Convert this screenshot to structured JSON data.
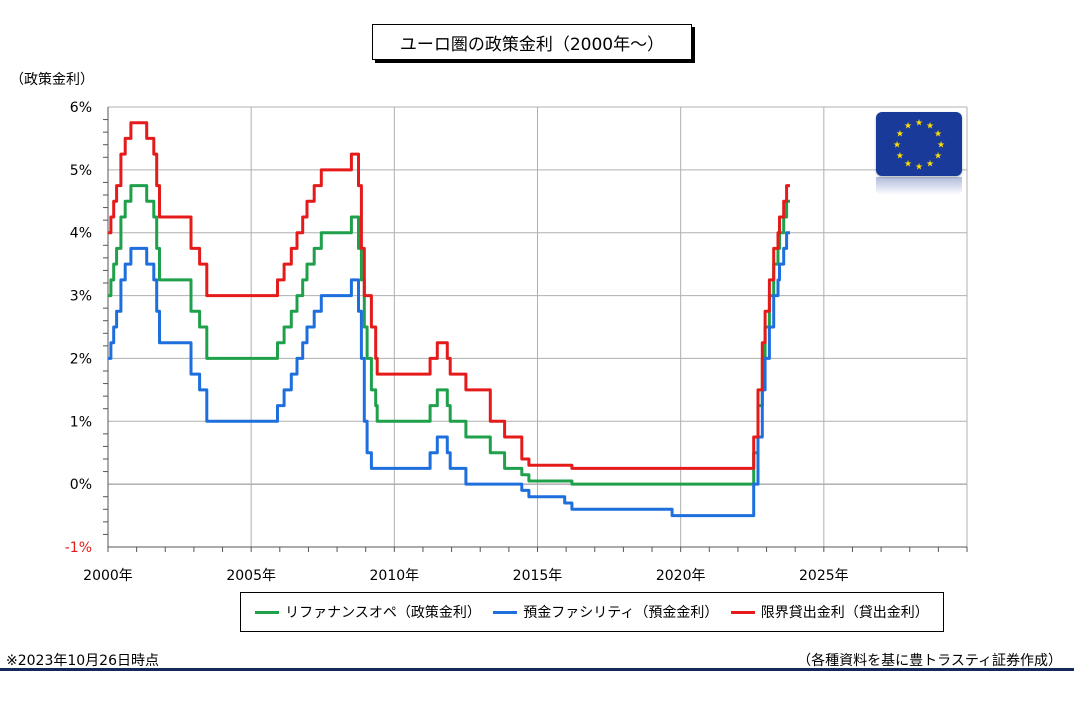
{
  "title": "ユーロ圏の政策金利（2000年～）",
  "y_unit_label": "（政策金利）",
  "footnote_left": "※2023年10月26日時点",
  "footnote_right": "（各種資料を基に豊トラスティ証券作成）",
  "flag_icon": "eu-flag-icon",
  "chart_data": {
    "type": "line",
    "title": "ユーロ圏の政策金利（2000年～）",
    "xlabel": "",
    "ylabel": "（政策金利）",
    "xlim": [
      2000,
      2030
    ],
    "ylim": [
      -1,
      6
    ],
    "x_ticks": [
      2000,
      2005,
      2010,
      2015,
      2020,
      2025
    ],
    "x_tick_labels": [
      "2000年",
      "2005年",
      "2010年",
      "2015年",
      "2020年",
      "2025年"
    ],
    "y_ticks": [
      -1,
      0,
      1,
      2,
      3,
      4,
      5,
      6
    ],
    "y_tick_labels": [
      "-1%",
      "0%",
      "1%",
      "2%",
      "3%",
      "4%",
      "5%",
      "6%"
    ],
    "grid": true,
    "legend_position": "bottom",
    "series": [
      {
        "name": "リファナンスオペ（政策金利）",
        "color": "#1fa04a",
        "points": [
          [
            2000.0,
            3.0
          ],
          [
            2000.1,
            3.25
          ],
          [
            2000.2,
            3.5
          ],
          [
            2000.3,
            3.75
          ],
          [
            2000.45,
            4.25
          ],
          [
            2000.6,
            4.5
          ],
          [
            2000.8,
            4.75
          ],
          [
            2001.35,
            4.5
          ],
          [
            2001.6,
            4.25
          ],
          [
            2001.7,
            3.75
          ],
          [
            2001.8,
            3.25
          ],
          [
            2002.9,
            2.75
          ],
          [
            2003.2,
            2.5
          ],
          [
            2003.45,
            2.0
          ],
          [
            2005.92,
            2.25
          ],
          [
            2006.15,
            2.5
          ],
          [
            2006.4,
            2.75
          ],
          [
            2006.6,
            3.0
          ],
          [
            2006.8,
            3.25
          ],
          [
            2006.95,
            3.5
          ],
          [
            2007.2,
            3.75
          ],
          [
            2007.45,
            4.0
          ],
          [
            2008.5,
            4.25
          ],
          [
            2008.75,
            3.75
          ],
          [
            2008.85,
            3.25
          ],
          [
            2008.95,
            2.5
          ],
          [
            2009.05,
            2.0
          ],
          [
            2009.2,
            1.5
          ],
          [
            2009.35,
            1.25
          ],
          [
            2009.4,
            1.0
          ],
          [
            2011.25,
            1.25
          ],
          [
            2011.5,
            1.5
          ],
          [
            2011.85,
            1.25
          ],
          [
            2011.95,
            1.0
          ],
          [
            2012.5,
            0.75
          ],
          [
            2013.35,
            0.5
          ],
          [
            2013.85,
            0.25
          ],
          [
            2014.45,
            0.15
          ],
          [
            2014.7,
            0.05
          ],
          [
            2016.2,
            0.0
          ],
          [
            2022.55,
            0.5
          ],
          [
            2022.7,
            1.25
          ],
          [
            2022.85,
            2.0
          ],
          [
            2022.95,
            2.5
          ],
          [
            2023.1,
            3.0
          ],
          [
            2023.25,
            3.5
          ],
          [
            2023.4,
            3.75
          ],
          [
            2023.45,
            4.0
          ],
          [
            2023.6,
            4.25
          ],
          [
            2023.7,
            4.5
          ],
          [
            2023.82,
            4.5
          ]
        ]
      },
      {
        "name": "預金ファシリティ（預金金利）",
        "color": "#1e6fde",
        "points": [
          [
            2000.0,
            2.0
          ],
          [
            2000.1,
            2.25
          ],
          [
            2000.2,
            2.5
          ],
          [
            2000.3,
            2.75
          ],
          [
            2000.45,
            3.25
          ],
          [
            2000.6,
            3.5
          ],
          [
            2000.8,
            3.75
          ],
          [
            2001.35,
            3.5
          ],
          [
            2001.6,
            3.25
          ],
          [
            2001.7,
            2.75
          ],
          [
            2001.8,
            2.25
          ],
          [
            2002.9,
            1.75
          ],
          [
            2003.2,
            1.5
          ],
          [
            2003.45,
            1.0
          ],
          [
            2005.92,
            1.25
          ],
          [
            2006.15,
            1.5
          ],
          [
            2006.4,
            1.75
          ],
          [
            2006.6,
            2.0
          ],
          [
            2006.8,
            2.25
          ],
          [
            2006.95,
            2.5
          ],
          [
            2007.2,
            2.75
          ],
          [
            2007.45,
            3.0
          ],
          [
            2008.5,
            3.25
          ],
          [
            2008.75,
            2.75
          ],
          [
            2008.85,
            2.0
          ],
          [
            2008.95,
            1.0
          ],
          [
            2009.05,
            0.5
          ],
          [
            2009.2,
            0.25
          ],
          [
            2011.25,
            0.5
          ],
          [
            2011.5,
            0.75
          ],
          [
            2011.85,
            0.5
          ],
          [
            2011.95,
            0.25
          ],
          [
            2012.5,
            0.0
          ],
          [
            2014.45,
            -0.1
          ],
          [
            2014.7,
            -0.2
          ],
          [
            2015.95,
            -0.3
          ],
          [
            2016.2,
            -0.4
          ],
          [
            2019.7,
            -0.5
          ],
          [
            2022.55,
            0.0
          ],
          [
            2022.7,
            0.75
          ],
          [
            2022.85,
            1.5
          ],
          [
            2022.95,
            2.0
          ],
          [
            2023.1,
            2.5
          ],
          [
            2023.25,
            3.0
          ],
          [
            2023.4,
            3.25
          ],
          [
            2023.45,
            3.5
          ],
          [
            2023.6,
            3.75
          ],
          [
            2023.7,
            4.0
          ],
          [
            2023.82,
            4.0
          ]
        ]
      },
      {
        "name": "限界貸出金利（貸出金利）",
        "color": "#e51b1b",
        "points": [
          [
            2000.0,
            4.0
          ],
          [
            2000.1,
            4.25
          ],
          [
            2000.2,
            4.5
          ],
          [
            2000.3,
            4.75
          ],
          [
            2000.45,
            5.25
          ],
          [
            2000.6,
            5.5
          ],
          [
            2000.8,
            5.75
          ],
          [
            2001.35,
            5.5
          ],
          [
            2001.6,
            5.25
          ],
          [
            2001.7,
            4.75
          ],
          [
            2001.8,
            4.25
          ],
          [
            2002.9,
            3.75
          ],
          [
            2003.2,
            3.5
          ],
          [
            2003.45,
            3.0
          ],
          [
            2005.92,
            3.25
          ],
          [
            2006.15,
            3.5
          ],
          [
            2006.4,
            3.75
          ],
          [
            2006.6,
            4.0
          ],
          [
            2006.8,
            4.25
          ],
          [
            2006.95,
            4.5
          ],
          [
            2007.2,
            4.75
          ],
          [
            2007.45,
            5.0
          ],
          [
            2008.5,
            5.25
          ],
          [
            2008.75,
            4.75
          ],
          [
            2008.85,
            3.75
          ],
          [
            2008.95,
            3.0
          ],
          [
            2009.2,
            2.5
          ],
          [
            2009.35,
            2.0
          ],
          [
            2009.4,
            1.75
          ],
          [
            2011.25,
            2.0
          ],
          [
            2011.5,
            2.25
          ],
          [
            2011.85,
            2.0
          ],
          [
            2011.95,
            1.75
          ],
          [
            2012.5,
            1.5
          ],
          [
            2013.35,
            1.0
          ],
          [
            2013.85,
            0.75
          ],
          [
            2014.45,
            0.4
          ],
          [
            2014.7,
            0.3
          ],
          [
            2016.2,
            0.25
          ],
          [
            2022.55,
            0.75
          ],
          [
            2022.7,
            1.5
          ],
          [
            2022.85,
            2.25
          ],
          [
            2022.95,
            2.75
          ],
          [
            2023.1,
            3.25
          ],
          [
            2023.25,
            3.75
          ],
          [
            2023.4,
            4.0
          ],
          [
            2023.45,
            4.25
          ],
          [
            2023.6,
            4.5
          ],
          [
            2023.7,
            4.75
          ],
          [
            2023.82,
            4.75
          ]
        ]
      }
    ]
  }
}
